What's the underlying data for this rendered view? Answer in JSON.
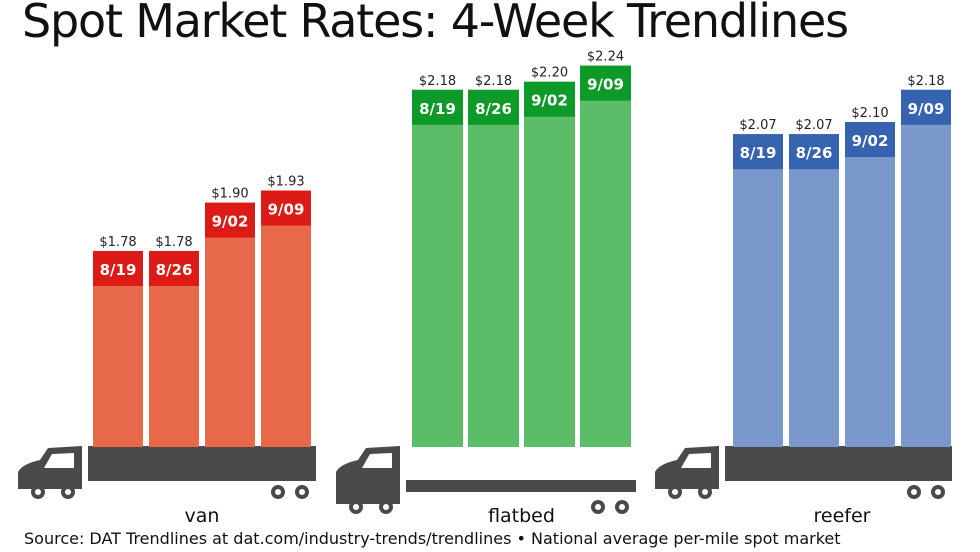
{
  "title": "Spot Market Rates: 4-Week Trendlines",
  "source": "Source: DAT Trendlines at dat.com/industry-trends/trendlines • National average per-mile spot market",
  "chart_data": {
    "type": "bar",
    "title": "Spot Market Rates: 4-Week Trendlines",
    "categories": [
      "8/19",
      "8/26",
      "9/02",
      "9/09"
    ],
    "series": [
      {
        "name": "van",
        "values": [
          1.78,
          1.78,
          1.9,
          1.93
        ],
        "labels": [
          "$1.78",
          "$1.78",
          "$1.90",
          "$1.93"
        ],
        "color": "#e8694a",
        "cap_color": "#dd1b16"
      },
      {
        "name": "flatbed",
        "values": [
          2.18,
          2.18,
          2.2,
          2.24
        ],
        "labels": [
          "$2.18",
          "$2.18",
          "$2.20",
          "$2.24"
        ],
        "color": "#5cbd68",
        "cap_color": "#0e9a29"
      },
      {
        "name": "reefer",
        "values": [
          2.07,
          2.07,
          2.1,
          2.18
        ],
        "labels": [
          "$2.07",
          "$2.07",
          "$2.10",
          "$2.18"
        ],
        "color": "#7a98cb",
        "cap_color": "#3563b0"
      }
    ],
    "truck_color": "#4a4a4a",
    "grid": false
  }
}
